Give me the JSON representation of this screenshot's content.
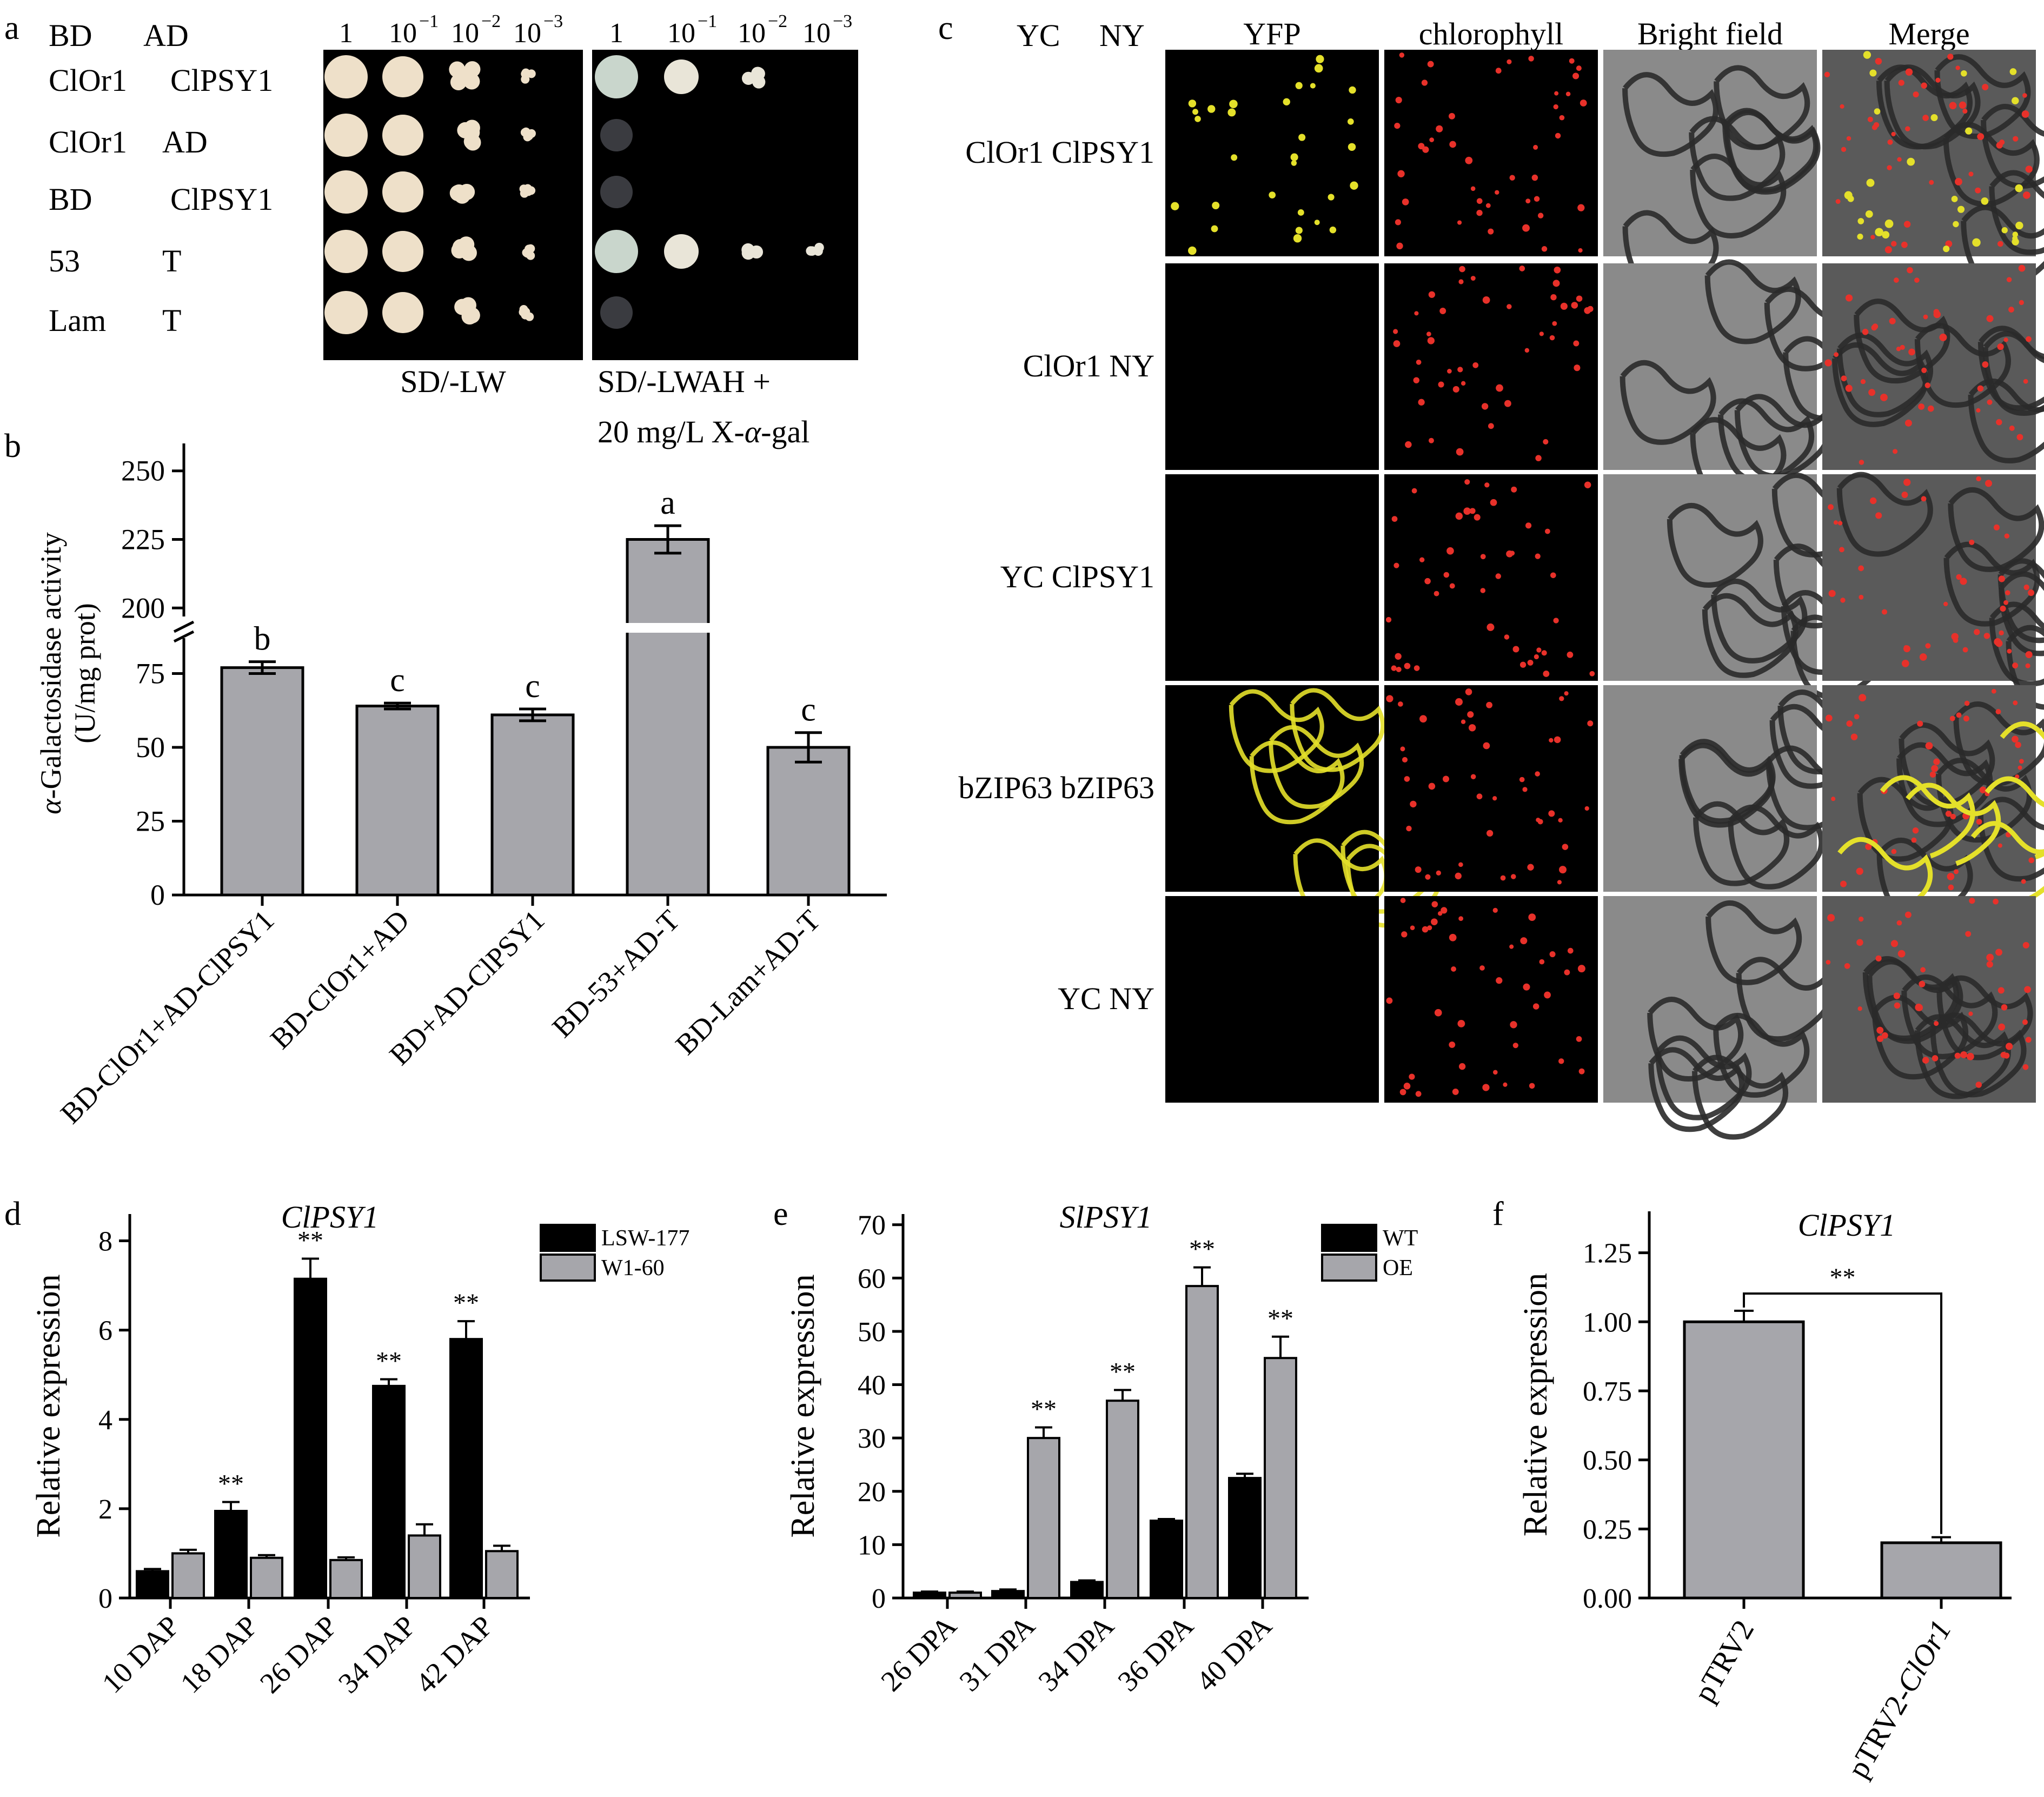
{
  "panel_letters": [
    "a",
    "b",
    "c",
    "d",
    "e",
    "f"
  ],
  "panel_a": {
    "header_bd": "BD",
    "header_ad": "AD",
    "rows": [
      {
        "bd": "ClOr1",
        "ad": "ClPSY1"
      },
      {
        "bd": "ClOr1",
        "ad": "AD"
      },
      {
        "bd": "BD",
        "ad": "ClPSY1"
      },
      {
        "bd": "53",
        "ad": "T"
      },
      {
        "bd": "Lam",
        "ad": "T"
      }
    ],
    "dilutions": [
      "1",
      "10",
      "10",
      "10"
    ],
    "dilution_exponents": [
      "",
      "−1",
      "−2",
      "−3"
    ],
    "plate1_label": "SD/-LW",
    "plate2_label_line1": "SD/-LWAH +",
    "plate2_label_line2_pre": "20 mg/L X-",
    "plate2_label_line2_greek": "α",
    "plate2_label_line2_post": "-gal",
    "growth_sd_lw": [
      [
        1,
        1,
        1,
        1
      ],
      [
        1,
        1,
        1,
        1
      ],
      [
        1,
        1,
        1,
        1
      ],
      [
        1,
        1,
        1,
        1
      ],
      [
        1,
        1,
        1,
        1
      ]
    ],
    "growth_sd_lwah": [
      [
        1,
        1,
        1,
        0
      ],
      [
        0.3,
        0,
        0,
        0
      ],
      [
        0.3,
        0,
        0,
        0
      ],
      [
        1,
        1,
        1,
        1
      ],
      [
        0.3,
        0,
        0,
        0
      ]
    ]
  },
  "panel_c": {
    "header_yc": "YC",
    "header_ny": "NY",
    "columns": [
      "YFP",
      "chlorophyll",
      "Bright field",
      "Merge"
    ],
    "rows": [
      {
        "label": "ClOr1  ClPSY1",
        "yfp": "nuclear"
      },
      {
        "label": "ClOr1  NY",
        "yfp": "none"
      },
      {
        "label": "YC  ClPSY1",
        "yfp": "none"
      },
      {
        "label": "bZIP63  bZIP63",
        "yfp": "membrane"
      },
      {
        "label": "YC  NY",
        "yfp": "none"
      }
    ],
    "colors": {
      "yfp": "#e4e02a",
      "chlorophyll": "#e8312a",
      "bright_field": "#9a9a9a"
    }
  },
  "chart_data": [
    {
      "panel": "b",
      "type": "bar",
      "title": "",
      "ylabel_greek": "α",
      "ylabel_rest": "-Galactosidase activity",
      "ylabel_line2": "(U/mg prot)",
      "categories": [
        "BD-ClOr1+AD-ClPSY1",
        "BD-ClOr1+AD",
        "BD+AD-ClPSY1",
        "BD-53+AD-T",
        "BD-Lam+AD-T"
      ],
      "values": [
        77,
        64,
        61,
        225,
        50
      ],
      "errors": [
        2,
        1,
        2,
        5,
        5
      ],
      "significance": [
        "b",
        "c",
        "c",
        "a",
        "c"
      ],
      "broken_axis": true,
      "lower_ticks": [
        "0",
        "25",
        "50",
        "75"
      ],
      "upper_ticks": [
        "200",
        "225",
        "250"
      ],
      "ylim_lower": [
        0,
        87
      ],
      "ylim_upper": [
        190,
        260
      ],
      "colors": {
        "bar": "#a6a6ab"
      }
    },
    {
      "panel": "d",
      "type": "bar",
      "title": "ClPSY1",
      "ylabel": "Relative expression",
      "categories": [
        "10 DAP",
        "18 DAP",
        "26 DAP",
        "34 DAP",
        "42 DAP"
      ],
      "series": [
        {
          "name": "LSW-177",
          "values": [
            0.6,
            1.95,
            7.15,
            4.75,
            5.8
          ],
          "errors": [
            0.05,
            0.2,
            0.45,
            0.15,
            0.4
          ],
          "color": "#000000"
        },
        {
          "name": "W1-60",
          "values": [
            1.0,
            0.9,
            0.85,
            1.4,
            1.05
          ],
          "errors": [
            0.08,
            0.06,
            0.06,
            0.25,
            0.12
          ],
          "color": "#a6a6ab"
        }
      ],
      "annotations": [
        "",
        "**",
        "**",
        "**",
        "**"
      ],
      "yticks": [
        "0",
        "2",
        "4",
        "6",
        "8"
      ],
      "ylim": [
        0,
        8.6
      ]
    },
    {
      "panel": "e",
      "type": "bar",
      "title": "SlPSY1",
      "ylabel": "Relative expression",
      "categories": [
        "26 DPA",
        "31 DPA",
        "34 DPA",
        "36 DPA",
        "40 DPA"
      ],
      "series": [
        {
          "name": "WT",
          "values": [
            1,
            1.3,
            3,
            14.5,
            22.5
          ],
          "errors": [
            0.2,
            0.3,
            0.3,
            0.3,
            0.8
          ],
          "color": "#000000"
        },
        {
          "name": "OE",
          "values": [
            1,
            30,
            37,
            58.5,
            45
          ],
          "errors": [
            0.2,
            2,
            2,
            3.5,
            4
          ],
          "color": "#a6a6ab"
        }
      ],
      "annotations": [
        "",
        "**",
        "**",
        "**",
        "**"
      ],
      "yticks": [
        "0",
        "10",
        "20",
        "30",
        "40",
        "50",
        "60",
        "70"
      ],
      "ylim": [
        0,
        72
      ]
    },
    {
      "panel": "f",
      "type": "bar",
      "title": "ClPSY1",
      "ylabel": "Relative expression",
      "categories": [
        "pTRV2",
        "pTRV2-ClOr1"
      ],
      "category_parts": [
        [
          "pTRV2",
          ""
        ],
        [
          "pTRV2-",
          "ClOr1"
        ]
      ],
      "values": [
        1.0,
        0.2
      ],
      "errors": [
        0.04,
        0.02
      ],
      "significance_bracket": "**",
      "yticks": [
        "0.00",
        "0.25",
        "0.50",
        "0.75",
        "1.00",
        "1.25"
      ],
      "ylim": [
        0,
        1.4
      ],
      "colors": {
        "bar": "#a6a6ab"
      }
    }
  ]
}
